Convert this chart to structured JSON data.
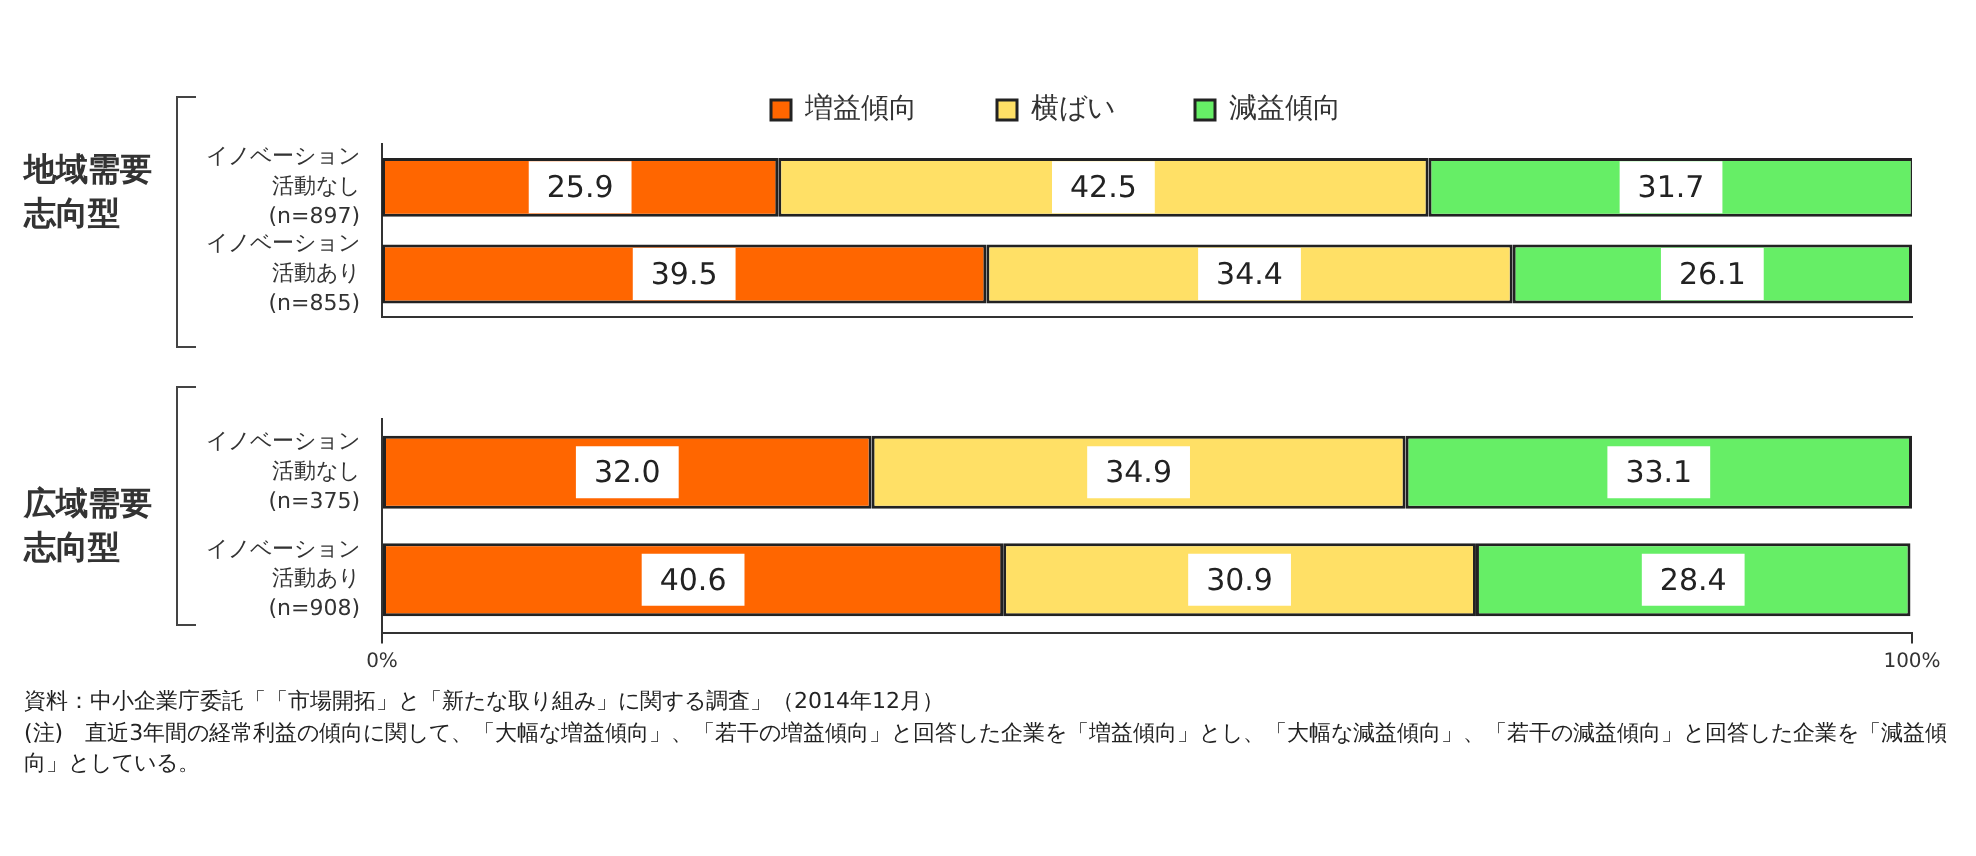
{
  "chart_data": [
    {
      "type": "bar",
      "orientation": "horizontal",
      "stacked": true,
      "ylabel": "地域需要志向型",
      "categories": [
        "イノベーション活動なし(n=897)",
        "イノベーション活動あり(n=855)"
      ],
      "series": [
        {
          "name": "増益傾向",
          "color": "#ff6600",
          "values": [
            25.9,
            39.5
          ],
          "value_labels": [
            "25.9",
            "39.5"
          ]
        },
        {
          "name": "横ばい",
          "color": "#ffe066",
          "values": [
            42.5,
            34.4
          ],
          "value_labels": [
            "42.5",
            "34.4"
          ]
        },
        {
          "name": "減益傾向",
          "color": "#66ee66",
          "values": [
            31.7,
            26.1
          ],
          "value_labels": [
            "31.7",
            "26.1"
          ]
        }
      ],
      "xlim": [
        0,
        100
      ],
      "tick_labels": "y",
      "legend": "top",
      "grid": false
    },
    {
      "type": "bar",
      "orientation": "horizontal",
      "stacked": true,
      "ylabel": "広域需要志向型",
      "categories": [
        "イノベーション活動なし(n=375)",
        "イノベーション活動あり(n=908)"
      ],
      "series": [
        {
          "color": "#ff6600",
          "values": [
            32.0,
            40.6
          ],
          "value_labels": [
            "32.0",
            "40.6"
          ]
        },
        {
          "color": "#ffe066",
          "values": [
            34.9,
            30.9
          ],
          "value_labels": [
            "34.9",
            "30.9"
          ]
        },
        {
          "color": "#66ee66",
          "values": [
            33.1,
            28.4
          ],
          "value_labels": [
            "33.1",
            "28.4"
          ]
        }
      ],
      "xlim": [
        0,
        100
      ],
      "xticks": [
        {
          "value": 0,
          "label": "0%"
        },
        {
          "value": 100,
          "label": "100%"
        }
      ],
      "grid": false,
      "annotations": [
        "資料：中小企業庁委託「「市場開拓」と「新たな取り組み」に関する調査」（2014年12月）",
        "(注)　直近3年間の経常利益の傾向に関して、「大幅な増益傾向」、「若干の増益傾向」と回答した企業を「増益傾向」とし、「大幅な減益傾向」、「若干の減益傾向」と回答した企業を「減益傾向」としている。"
      ]
    }
  ]
}
